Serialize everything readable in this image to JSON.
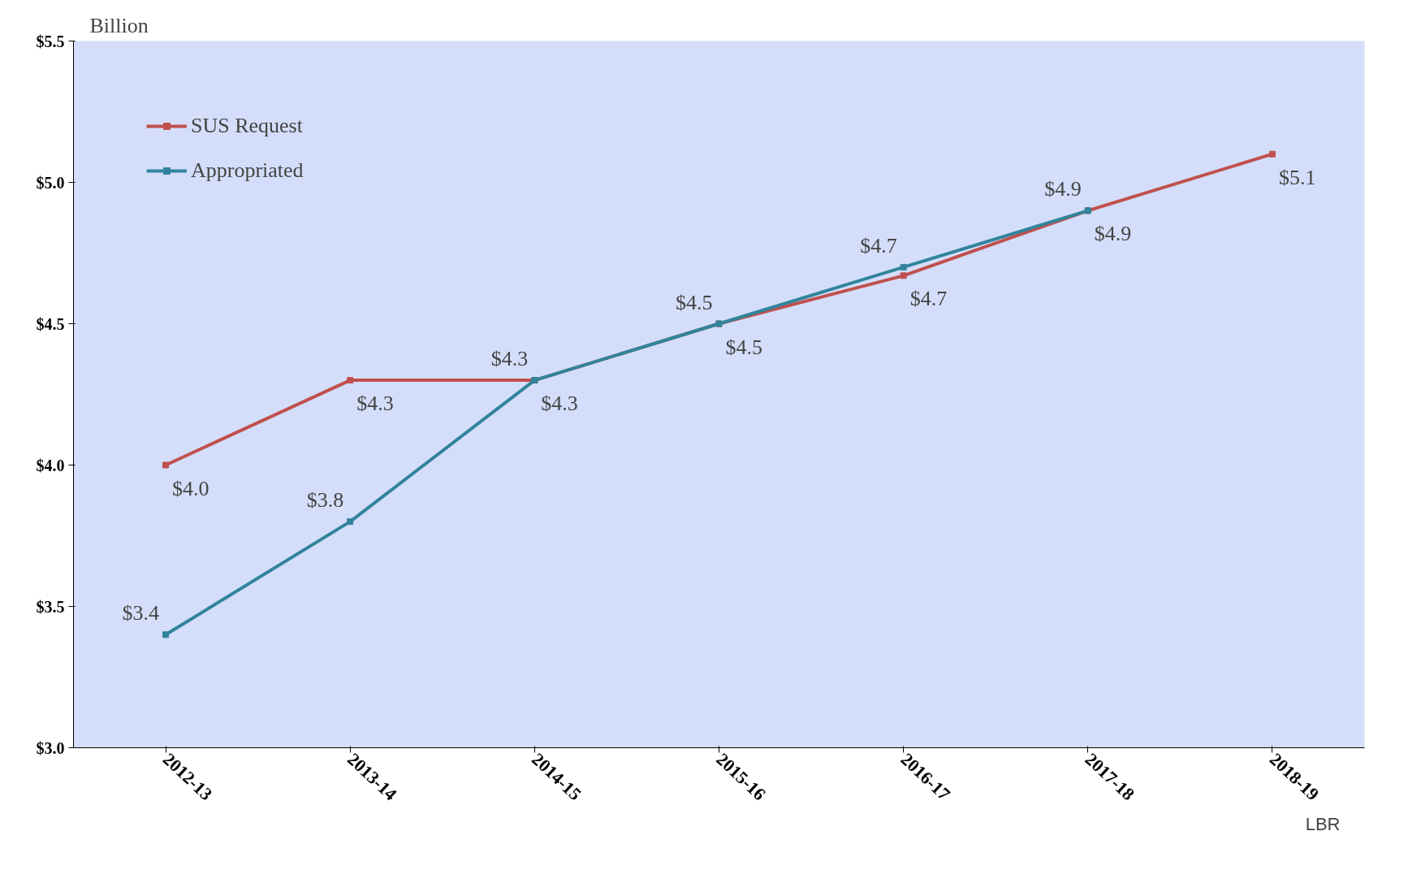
{
  "chart_data": {
    "type": "line",
    "ylabel": "Billion",
    "categories": [
      "2012-13",
      "2013-14",
      "2014-15",
      "2015-16",
      "2016-17",
      "2017-18",
      "2018-19"
    ],
    "series": [
      {
        "name": "SUS Request",
        "color": "#c0504d",
        "values": [
          4.0,
          4.3,
          4.3,
          4.5,
          4.67,
          4.9,
          5.1
        ],
        "value_labels": [
          "$4.0",
          "$4.3",
          "$4.3",
          "$4.5",
          "$4.7",
          "$4.9",
          "$5.1"
        ]
      },
      {
        "name": "Appropriated",
        "color": "#31849b",
        "values": [
          3.4,
          3.8,
          4.3,
          4.5,
          4.7,
          4.9,
          null
        ],
        "value_labels": [
          "$3.4",
          "$3.8",
          "$4.3",
          "$4.5",
          "$4.7",
          "$4.9",
          null
        ]
      }
    ],
    "ylim": [
      3.0,
      5.5
    ],
    "yticks": [
      {
        "value": 3.0,
        "label": "$3.0"
      },
      {
        "value": 3.5,
        "label": "$3.5"
      },
      {
        "value": 4.0,
        "label": "$4.0"
      },
      {
        "value": 4.5,
        "label": "$4.5"
      },
      {
        "value": 5.0,
        "label": "$5.0"
      },
      {
        "value": 5.5,
        "label": "$5.5"
      }
    ],
    "annotations": [
      "LBR"
    ],
    "grid": false,
    "legend": "top left",
    "marker": "square",
    "line_style": "solid"
  }
}
